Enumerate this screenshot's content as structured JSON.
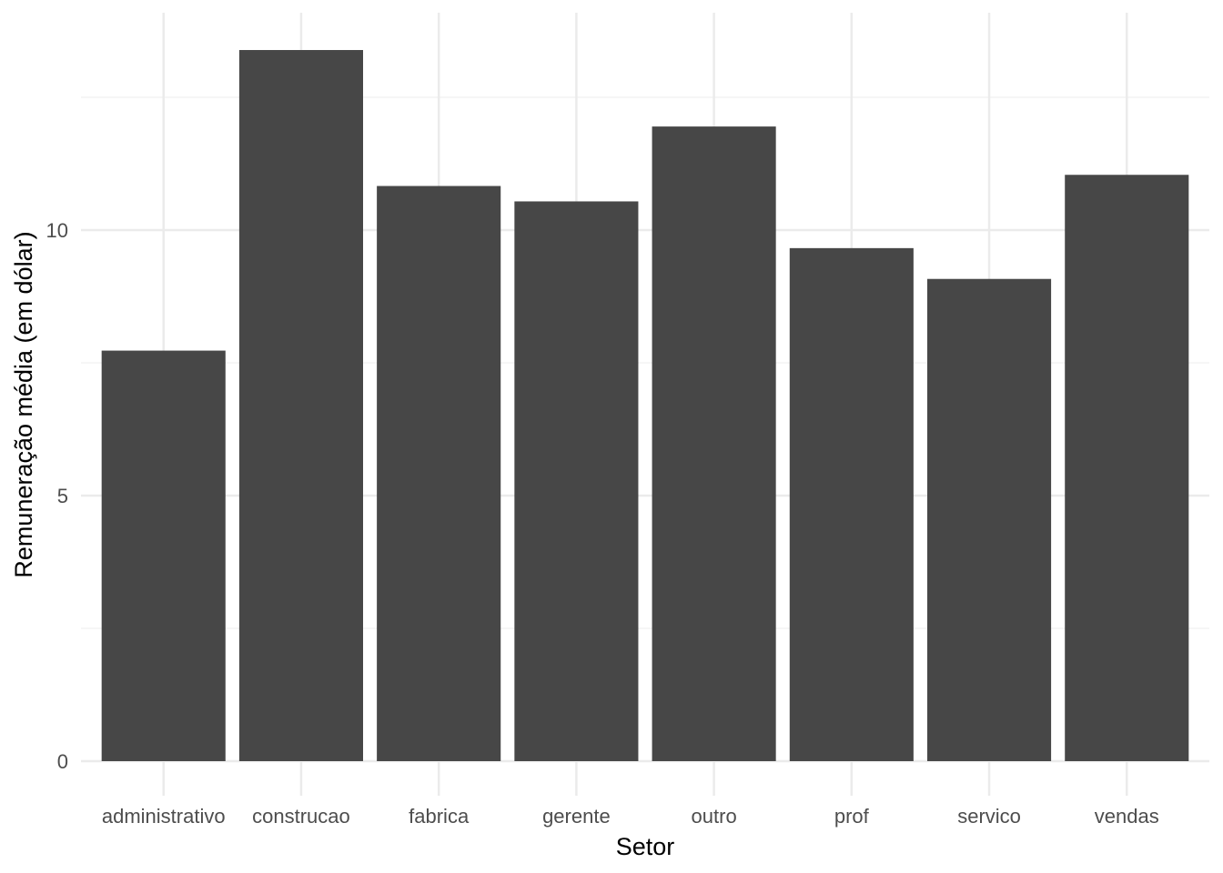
{
  "chart_data": {
    "type": "bar",
    "title": "",
    "xlabel": "Setor",
    "ylabel": "Remuneração média (em dólar)",
    "categories": [
      "administrativo",
      "construcao",
      "fabrica",
      "gerente",
      "outro",
      "prof",
      "servico",
      "vendas"
    ],
    "values": [
      7.73,
      13.39,
      10.83,
      10.54,
      11.95,
      9.66,
      9.08,
      11.04
    ],
    "ylim": [
      0,
      14.1
    ],
    "yticks": [
      0,
      5,
      10
    ],
    "ytick_labels": [
      "0",
      "5",
      "10"
    ],
    "grid": true,
    "legend": "none",
    "colors": {
      "bar": "#474747",
      "grid_major": "#ebebeb",
      "grid_minor": "#f3f3f3",
      "tick_text": "#4d4d4d",
      "axis_title": "#000000",
      "background": "#ffffff"
    }
  }
}
